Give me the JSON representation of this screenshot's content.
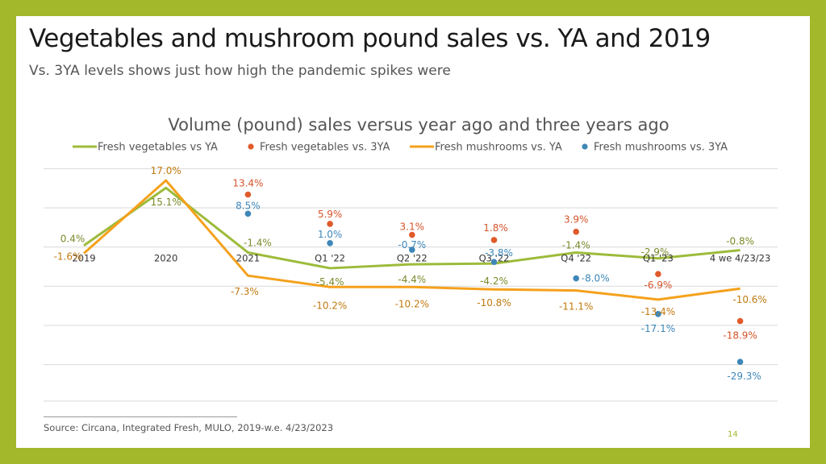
{
  "slide": {
    "title": "Vegetables and mushroom pound sales vs. YA and 2019",
    "subtitle": "Vs. 3YA levels shows just how high the pandemic spikes were",
    "source": "Source: Circana, Integrated Fresh, MULO, 2019-w.e. 4/23/2023",
    "page_number": "14",
    "frame_color": "#a3b82a"
  },
  "chart_data": {
    "type": "line",
    "title": "Volume (pound) sales versus year ago and three years ago",
    "categories": [
      "2019",
      "2020",
      "2021",
      "Q1 '22",
      "Q2 '22",
      "Q3 '22",
      "Q4 '22",
      "Q1 '23",
      "4 we 4/23/23"
    ],
    "ylim": [
      -35,
      20
    ],
    "grid": true,
    "legend_position": "top",
    "series": [
      {
        "name": "Fresh vegetables vs YA",
        "kind": "line",
        "color": "#9dbb3b",
        "values": [
          0.4,
          15.1,
          -1.4,
          -5.4,
          -4.4,
          -4.2,
          -1.4,
          -2.9,
          -0.8
        ],
        "labels": [
          "0.4%",
          "15.1%",
          "-1.4%",
          "-5.4%",
          "-4.4%",
          "-4.2%",
          "-1.4%",
          "-2.9%",
          "-0.8%"
        ]
      },
      {
        "name": "Fresh vegetables vs. 3YA",
        "kind": "dots",
        "color": "#e05a2b",
        "values": [
          null,
          null,
          13.4,
          5.9,
          3.1,
          1.8,
          3.9,
          -6.9,
          -18.9
        ],
        "labels": [
          "",
          "",
          "13.4%",
          "5.9%",
          "3.1%",
          "1.8%",
          "3.9%",
          "-6.9%",
          "-18.9%"
        ]
      },
      {
        "name": "Fresh mushrooms vs. YA",
        "kind": "line",
        "color": "#f5a11c",
        "values": [
          -1.6,
          17.0,
          -7.3,
          -10.2,
          -10.2,
          -10.8,
          -11.1,
          -13.4,
          -10.6
        ],
        "labels": [
          "-1.6%",
          "17.0%",
          "-7.3%",
          "-10.2%",
          "-10.2%",
          "-10.8%",
          "-11.1%",
          "-13.4%",
          "-10.6%"
        ]
      },
      {
        "name": "Fresh mushrooms vs. 3YA",
        "kind": "dots",
        "color": "#3e87b8",
        "values": [
          null,
          null,
          8.5,
          1.0,
          -0.7,
          -3.8,
          -8.0,
          -17.1,
          -29.3
        ],
        "labels": [
          "",
          "",
          "8.5%",
          "1.0%",
          "-0.7%",
          "-3.8%",
          "-8.0%",
          "-17.1%",
          "-29.3%"
        ]
      }
    ]
  }
}
